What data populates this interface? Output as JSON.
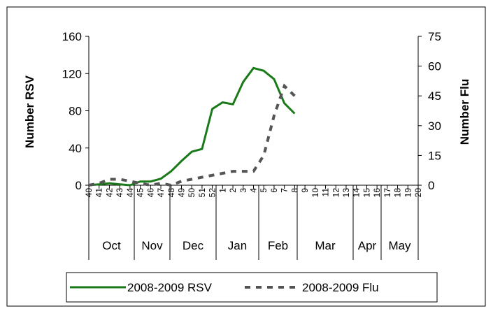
{
  "chart_data": {
    "type": "line",
    "y_label": "Number RSV",
    "y2_label": "Number Flu",
    "categories": [
      "40",
      "41",
      "42",
      "43",
      "44",
      "45",
      "46",
      "47",
      "48",
      "49",
      "50",
      "51",
      "52",
      "1",
      "2",
      "3",
      "4",
      "5",
      "6",
      "7",
      "8",
      "9",
      "10",
      "11",
      "12",
      "13",
      "14",
      "15",
      "16",
      "17",
      "18",
      "19",
      "20"
    ],
    "months": [
      "Oct",
      "Nov",
      "Dec",
      "Jan",
      "Feb",
      "Mar",
      "Apr",
      "May"
    ],
    "series": [
      {
        "name": "2008-2009 RSV",
        "color": "#1a7a1a",
        "style": "solid",
        "values": [
          0,
          1,
          2,
          1,
          0,
          4,
          4,
          7,
          15,
          26,
          36,
          39,
          82,
          89,
          87,
          111,
          126,
          123,
          114,
          88,
          77,
          null,
          null,
          null,
          null,
          null,
          null,
          null,
          null,
          null,
          null,
          null,
          null
        ]
      },
      {
        "name": "2008-2009 Flu",
        "color": "#555555",
        "style": "dashed",
        "axis": "y2",
        "values": [
          0,
          1,
          3,
          3,
          2,
          1,
          0,
          1,
          0,
          2,
          3,
          4,
          5,
          6,
          7,
          7,
          7,
          15,
          35,
          50,
          45,
          null,
          null,
          null,
          null,
          null,
          null,
          null,
          null,
          null,
          null,
          null,
          null
        ]
      }
    ],
    "ylim": [
      0,
      160
    ],
    "yticks": [
      0,
      40,
      80,
      120,
      160
    ],
    "y2lim": [
      0,
      75
    ],
    "y2ticks": [
      0,
      15,
      30,
      45,
      60,
      75
    ]
  }
}
